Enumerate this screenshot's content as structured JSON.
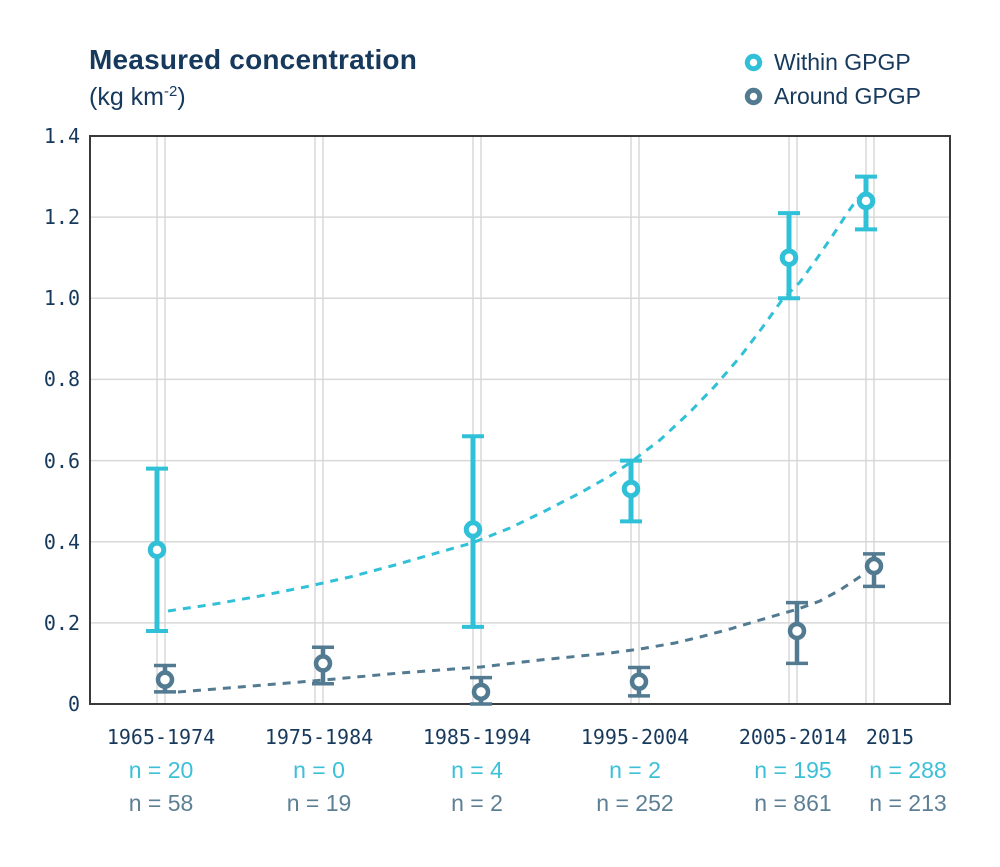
{
  "title": {
    "text": "Measured concentration",
    "units_prefix": "(kg km",
    "units_sup": "-2",
    "units_suffix": ")"
  },
  "legend": {
    "items": [
      {
        "label": "Within GPGP",
        "color": "#30C0D7"
      },
      {
        "label": "Around GPGP",
        "color": "#527A90"
      }
    ]
  },
  "colors": {
    "within": "#30C0D7",
    "around": "#527A90",
    "navy_text": "#16395C",
    "n_within_text": "#3BC0D8",
    "n_around_text": "#5D7F94",
    "grid": "#D8D8D8",
    "frame": "#3A3A3A",
    "background": "#FFFFFF"
  },
  "chart_data": {
    "type": "scatter",
    "title": "Measured concentration",
    "units": "(kg km⁻²)",
    "ylim": [
      0,
      1.4
    ],
    "ytick_labels": [
      "0",
      "0.2",
      "0.4",
      "0.6",
      "0.8",
      "1.0",
      "1.2",
      "1.4"
    ],
    "ytick_values": [
      0,
      0.2,
      0.4,
      0.6,
      0.8,
      1.0,
      1.2,
      1.4
    ],
    "grid": true,
    "legend_position": "top-right",
    "categories": [
      "1965-1974",
      "1975-1984",
      "1985-1994",
      "1995-2004",
      "2005-2014",
      "2015"
    ],
    "series": [
      {
        "name": "Within GPGP",
        "marker": "open-circle",
        "trend": "exponential-dashed",
        "n": [
          20,
          0,
          4,
          2,
          195,
          288
        ],
        "n_labels": [
          "n = 20",
          "n = 0",
          "n = 4",
          "n = 2",
          "n = 195",
          "n = 288"
        ],
        "values": [
          0.38,
          null,
          0.43,
          0.53,
          1.1,
          1.24
        ],
        "err_low": [
          0.18,
          null,
          0.19,
          0.45,
          1.0,
          1.17
        ],
        "err_high": [
          0.58,
          null,
          0.66,
          0.6,
          1.21,
          1.3
        ]
      },
      {
        "name": "Around GPGP",
        "marker": "open-circle",
        "trend": "exponential-dashed",
        "n": [
          58,
          19,
          2,
          252,
          861,
          213
        ],
        "n_labels": [
          "n = 58",
          "n = 19",
          "n = 2",
          "n = 252",
          "n = 861",
          "n = 213"
        ],
        "values": [
          0.06,
          0.1,
          0.03,
          0.055,
          0.18,
          0.34
        ],
        "err_low": [
          0.03,
          0.05,
          0.0,
          0.02,
          0.1,
          0.29
        ],
        "err_high": [
          0.095,
          0.14,
          0.065,
          0.09,
          0.25,
          0.37
        ]
      }
    ]
  }
}
